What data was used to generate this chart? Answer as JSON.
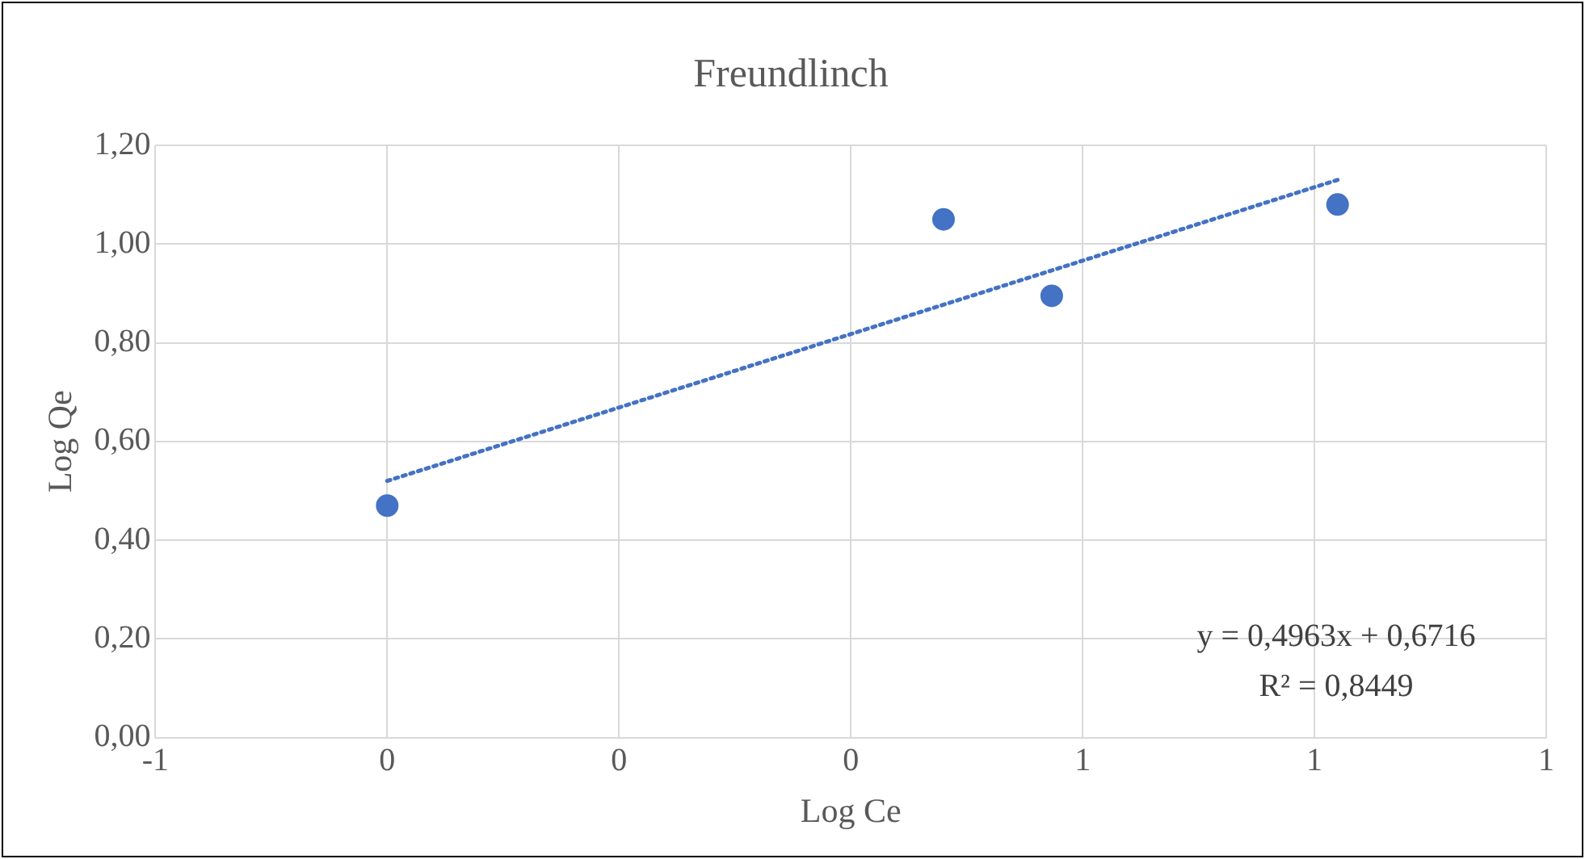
{
  "chart_data": {
    "type": "scatter",
    "title": "Freundlinch",
    "xlabel": "Log Ce",
    "ylabel": "Log Qe",
    "xlim": [
      -0.6,
      1.2
    ],
    "xticks": [
      {
        "value": -0.6,
        "label": "-1"
      },
      {
        "value": -0.3,
        "label": "0"
      },
      {
        "value": 0,
        "label": "0"
      },
      {
        "value": 0.3,
        "label": "0"
      },
      {
        "value": 0.6,
        "label": "1"
      },
      {
        "value": 0.9,
        "label": "1"
      },
      {
        "value": 1.2,
        "label": "1"
      }
    ],
    "ylim": [
      0,
      1.2
    ],
    "yticks": [
      {
        "value": 0,
        "label": "0,00"
      },
      {
        "value": 0.2,
        "label": "0,20"
      },
      {
        "value": 0.4,
        "label": "0,40"
      },
      {
        "value": 0.6,
        "label": "0,60"
      },
      {
        "value": 0.8,
        "label": "0,80"
      },
      {
        "value": 1,
        "label": "1,00"
      },
      {
        "value": 1.2,
        "label": "1,20"
      }
    ],
    "grid": true,
    "legend": false,
    "marker": "circle",
    "series": [
      {
        "type": "scatter",
        "color": "#4472c4",
        "x": [
          -0.3,
          0.42,
          0.56,
          0.93
        ],
        "values": [
          0.47,
          1.05,
          0.895,
          1.08
        ]
      },
      {
        "type": "line",
        "color": "#4472c4",
        "x": [
          -0.3,
          0.93
        ],
        "values": [
          0.52,
          1.13
        ],
        "line_style": "dotted",
        "marker": "none"
      }
    ],
    "annotations": [
      "y = 0,4963x + 0,6716",
      "R² = 0,8449"
    ]
  }
}
